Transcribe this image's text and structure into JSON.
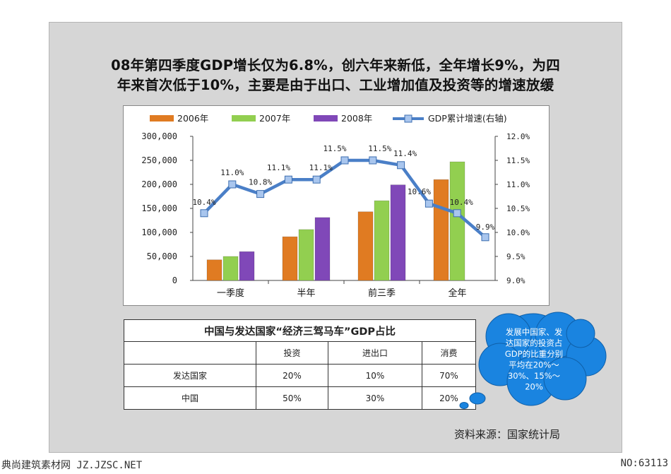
{
  "title": {
    "line1": "08年第四季度GDP增长仅为6.8%，创六年来新低，全年增长9%，为四",
    "line2": "年来首次低于10%，主要是由于出口、工业增加值及投资等的增速放缓"
  },
  "chart_data": {
    "type": "bar",
    "categories": [
      "一季度",
      "半年",
      "前三季",
      "全年"
    ],
    "series": [
      {
        "name": "2006年",
        "values": [
          43000,
          91000,
          143000,
          210000
        ],
        "color": "#e07b22"
      },
      {
        "name": "2007年",
        "values": [
          50000,
          106000,
          166000,
          247000
        ],
        "color": "#92cf50"
      },
      {
        "name": "2008年",
        "values": [
          60000,
          131000,
          199000,
          null
        ],
        "color": "#8048b8"
      }
    ],
    "line_series": {
      "name": "GDP累计增速(右轴)",
      "color": "#4a7fc7",
      "points": [
        {
          "value": 10.4,
          "label": "10.4%"
        },
        {
          "value": 11.0,
          "label": "11.0%"
        },
        {
          "value": 10.8,
          "label": "10.8%"
        },
        {
          "value": 11.1,
          "label": "11.1%"
        },
        {
          "value": 11.1,
          "label": "11.1%"
        },
        {
          "value": 11.5,
          "label": "11.5%"
        },
        {
          "value": 11.5,
          "label": "11.5%"
        },
        {
          "value": 11.4,
          "label": "11.4%"
        },
        {
          "value": 10.6,
          "label": "10.6%"
        },
        {
          "value": 10.4,
          "label": "10.4%"
        },
        {
          "value": 9.9,
          "label": "9.9%"
        }
      ]
    },
    "y_left": {
      "min": 0,
      "max": 300000,
      "ticks": [
        "0",
        "50,000",
        "100,000",
        "150,000",
        "200,000",
        "250,000",
        "300,000"
      ]
    },
    "y_right": {
      "min": 9.0,
      "max": 12.0,
      "ticks": [
        "9.0%",
        "9.5%",
        "10.0%",
        "10.5%",
        "11.0%",
        "11.5%",
        "12.0%"
      ]
    },
    "legend": "top",
    "grid": false
  },
  "table": {
    "caption": "中国与发达国家“经济三驾马车”GDP占比",
    "headers": [
      "",
      "投资",
      "进出口",
      "消费"
    ],
    "rows": [
      [
        "发达国家",
        "20%",
        "10%",
        "70%"
      ],
      [
        "中国",
        "50%",
        "30%",
        "20%"
      ]
    ]
  },
  "callout": {
    "lines": [
      "发展中国家、发",
      "达国家的投资占",
      "GDP的比重分别",
      "平均在20%～",
      "30%、15%～",
      "20%"
    ],
    "color": "#1a84e0"
  },
  "source": "资料来源：国家统计局",
  "footer": {
    "left": "典尚建筑素材网 JZ.JZSC.NET",
    "right": "NO:63113"
  }
}
